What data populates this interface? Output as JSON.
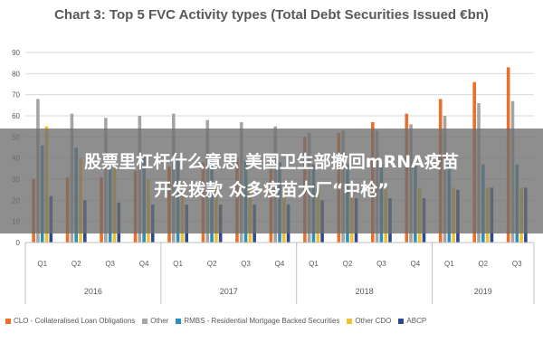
{
  "chart_data": {
    "type": "bar",
    "title": "Chart 3: Top 5 FVC Activity types (Total Debt Securities Issued €bn)",
    "xlabel": "",
    "ylabel": "",
    "ylim": [
      0,
      90
    ],
    "yticks": [
      0,
      10,
      20,
      30,
      40,
      50,
      60,
      70,
      80,
      90
    ],
    "categories": [
      "Q1",
      "Q2",
      "Q3",
      "Q4",
      "Q1",
      "Q2",
      "Q3",
      "Q4",
      "Q1",
      "Q2",
      "Q3",
      "Q4",
      "Q1",
      "Q2",
      "Q3"
    ],
    "groups": [
      {
        "label": "2016",
        "start": 0,
        "count": 4
      },
      {
        "label": "2017",
        "start": 4,
        "count": 4
      },
      {
        "label": "2018",
        "start": 8,
        "count": 4
      },
      {
        "label": "2019",
        "start": 12,
        "count": 3
      }
    ],
    "series": [
      {
        "name": "CLO - Collateralised Loan Obligations",
        "color": "#e8702a",
        "values": [
          30,
          31,
          31,
          34,
          36,
          38,
          40,
          42,
          50,
          52,
          57,
          61,
          68,
          76,
          83
        ]
      },
      {
        "name": "Other",
        "color": "#a5a5a5",
        "values": [
          68,
          61,
          59,
          60,
          61,
          58,
          57,
          55,
          52,
          53,
          53,
          56,
          60,
          66,
          67
        ]
      },
      {
        "name": "RMBS - Residential Mortgage Backed Securities",
        "color": "#2e8fb7",
        "values": [
          46,
          45,
          42,
          41,
          40,
          40,
          39,
          38,
          37,
          37,
          37,
          37,
          37,
          37,
          37
        ]
      },
      {
        "name": "Other CDO",
        "color": "#f2c12e",
        "values": [
          55,
          40,
          35,
          30,
          28,
          27,
          26,
          26,
          26,
          26,
          26,
          26,
          26,
          26,
          26
        ]
      },
      {
        "name": "ABCP",
        "color": "#2e4a8f",
        "values": [
          22,
          20,
          19,
          18,
          18,
          18,
          18,
          18,
          20,
          21,
          21,
          21,
          25,
          26,
          26
        ]
      }
    ],
    "grid": true,
    "legend": "bottom"
  },
  "overlay": {
    "line1": "股票里杠杆什么意思 美国卫生部撤回mRNA疫苗",
    "line2": "开发拨款 众多疫苗大厂“中枪”"
  }
}
